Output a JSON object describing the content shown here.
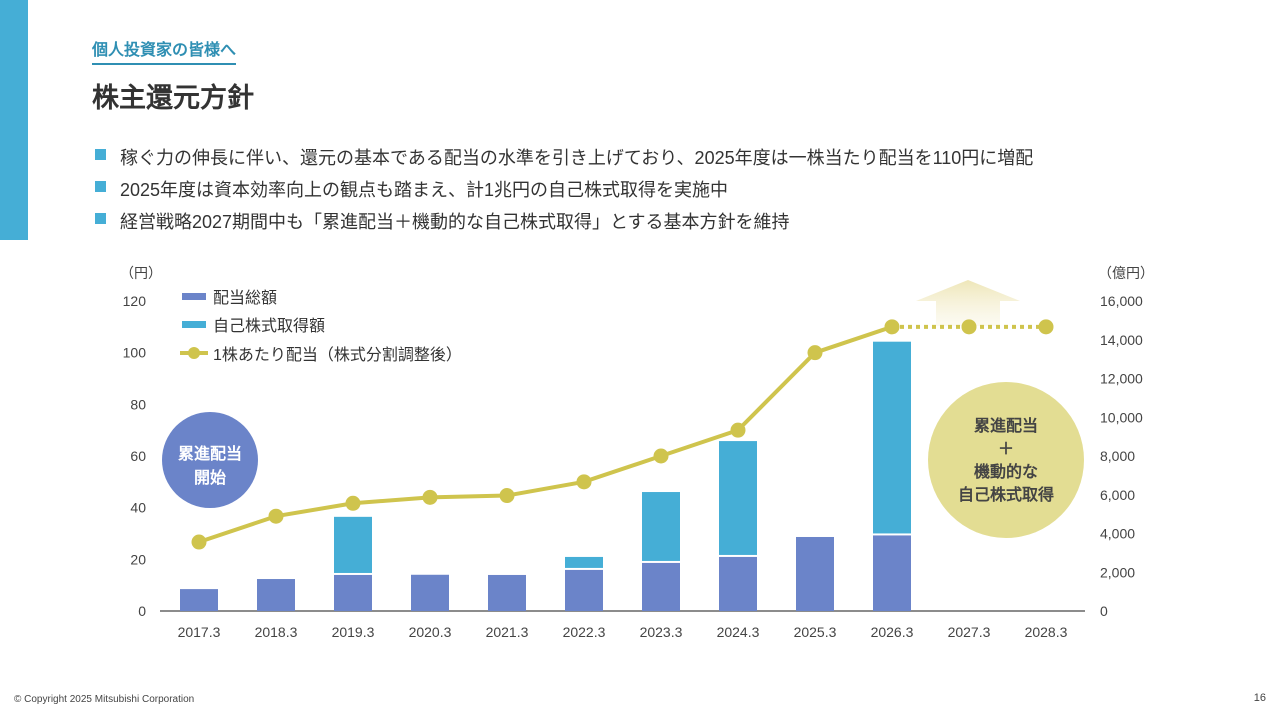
{
  "header": {
    "subtitle": "個人投資家の皆様へ",
    "title": "株主還元方針"
  },
  "bullets": [
    "稼ぐ力の伸長に伴い、還元の基本である配当の水準を引き上げており、2025年度は一株当たり配当を110円に増配",
    "2025年度は資本効率向上の観点も踏まえ、計1兆円の自己株式取得を実施中",
    "経営戦略2027期間中も「累進配当＋機動的な自己株式取得」とする基本方針を維持"
  ],
  "chart_data": {
    "type": "bar",
    "categories": [
      "2017.3",
      "2018.3",
      "2019.3",
      "2020.3",
      "2021.3",
      "2022.3",
      "2023.3",
      "2024.3",
      "2025.3",
      "2026.3",
      "2027.3",
      "2028.3"
    ],
    "series": [
      {
        "name": "配当総額",
        "axis": "right",
        "color": "#6b84c9",
        "values": [
          1130,
          1650,
          1860,
          1870,
          1860,
          2120,
          2480,
          2790,
          3820,
          3900,
          null,
          null
        ]
      },
      {
        "name": "自己株式取得額",
        "axis": "right",
        "color": "#45aed6",
        "values": [
          0,
          0,
          3000,
          0,
          0,
          670,
          3660,
          5980,
          0,
          10000,
          null,
          null
        ]
      },
      {
        "name": "1株あたり配当（株式分割調整後）",
        "axis": "left",
        "type": "line",
        "color": "#cfc44d",
        "values": [
          26.7,
          36.7,
          41.7,
          44,
          44.7,
          50,
          60,
          70,
          100,
          110,
          110,
          110
        ],
        "dashed_from": "2026.3"
      }
    ],
    "left_axis": {
      "unit": "（円）",
      "ticks": [
        "0",
        "20",
        "40",
        "60",
        "80",
        "100",
        "120"
      ],
      "range": [
        0,
        120
      ]
    },
    "right_axis": {
      "unit": "（億円）",
      "ticks": [
        "0",
        "2,000",
        "4,000",
        "6,000",
        "8,000",
        "10,000",
        "12,000",
        "14,000",
        "16,000"
      ],
      "range": [
        0,
        16000
      ]
    },
    "legend_position": "top-left",
    "annotations": {
      "circle_left": [
        "累進配当",
        "開始"
      ],
      "circle_right": [
        "累進配当",
        "＋",
        "機動的な",
        "自己株式取得"
      ]
    }
  },
  "footer": {
    "copyright": "© Copyright 2025 Mitsubishi Corporation",
    "page": "16"
  }
}
